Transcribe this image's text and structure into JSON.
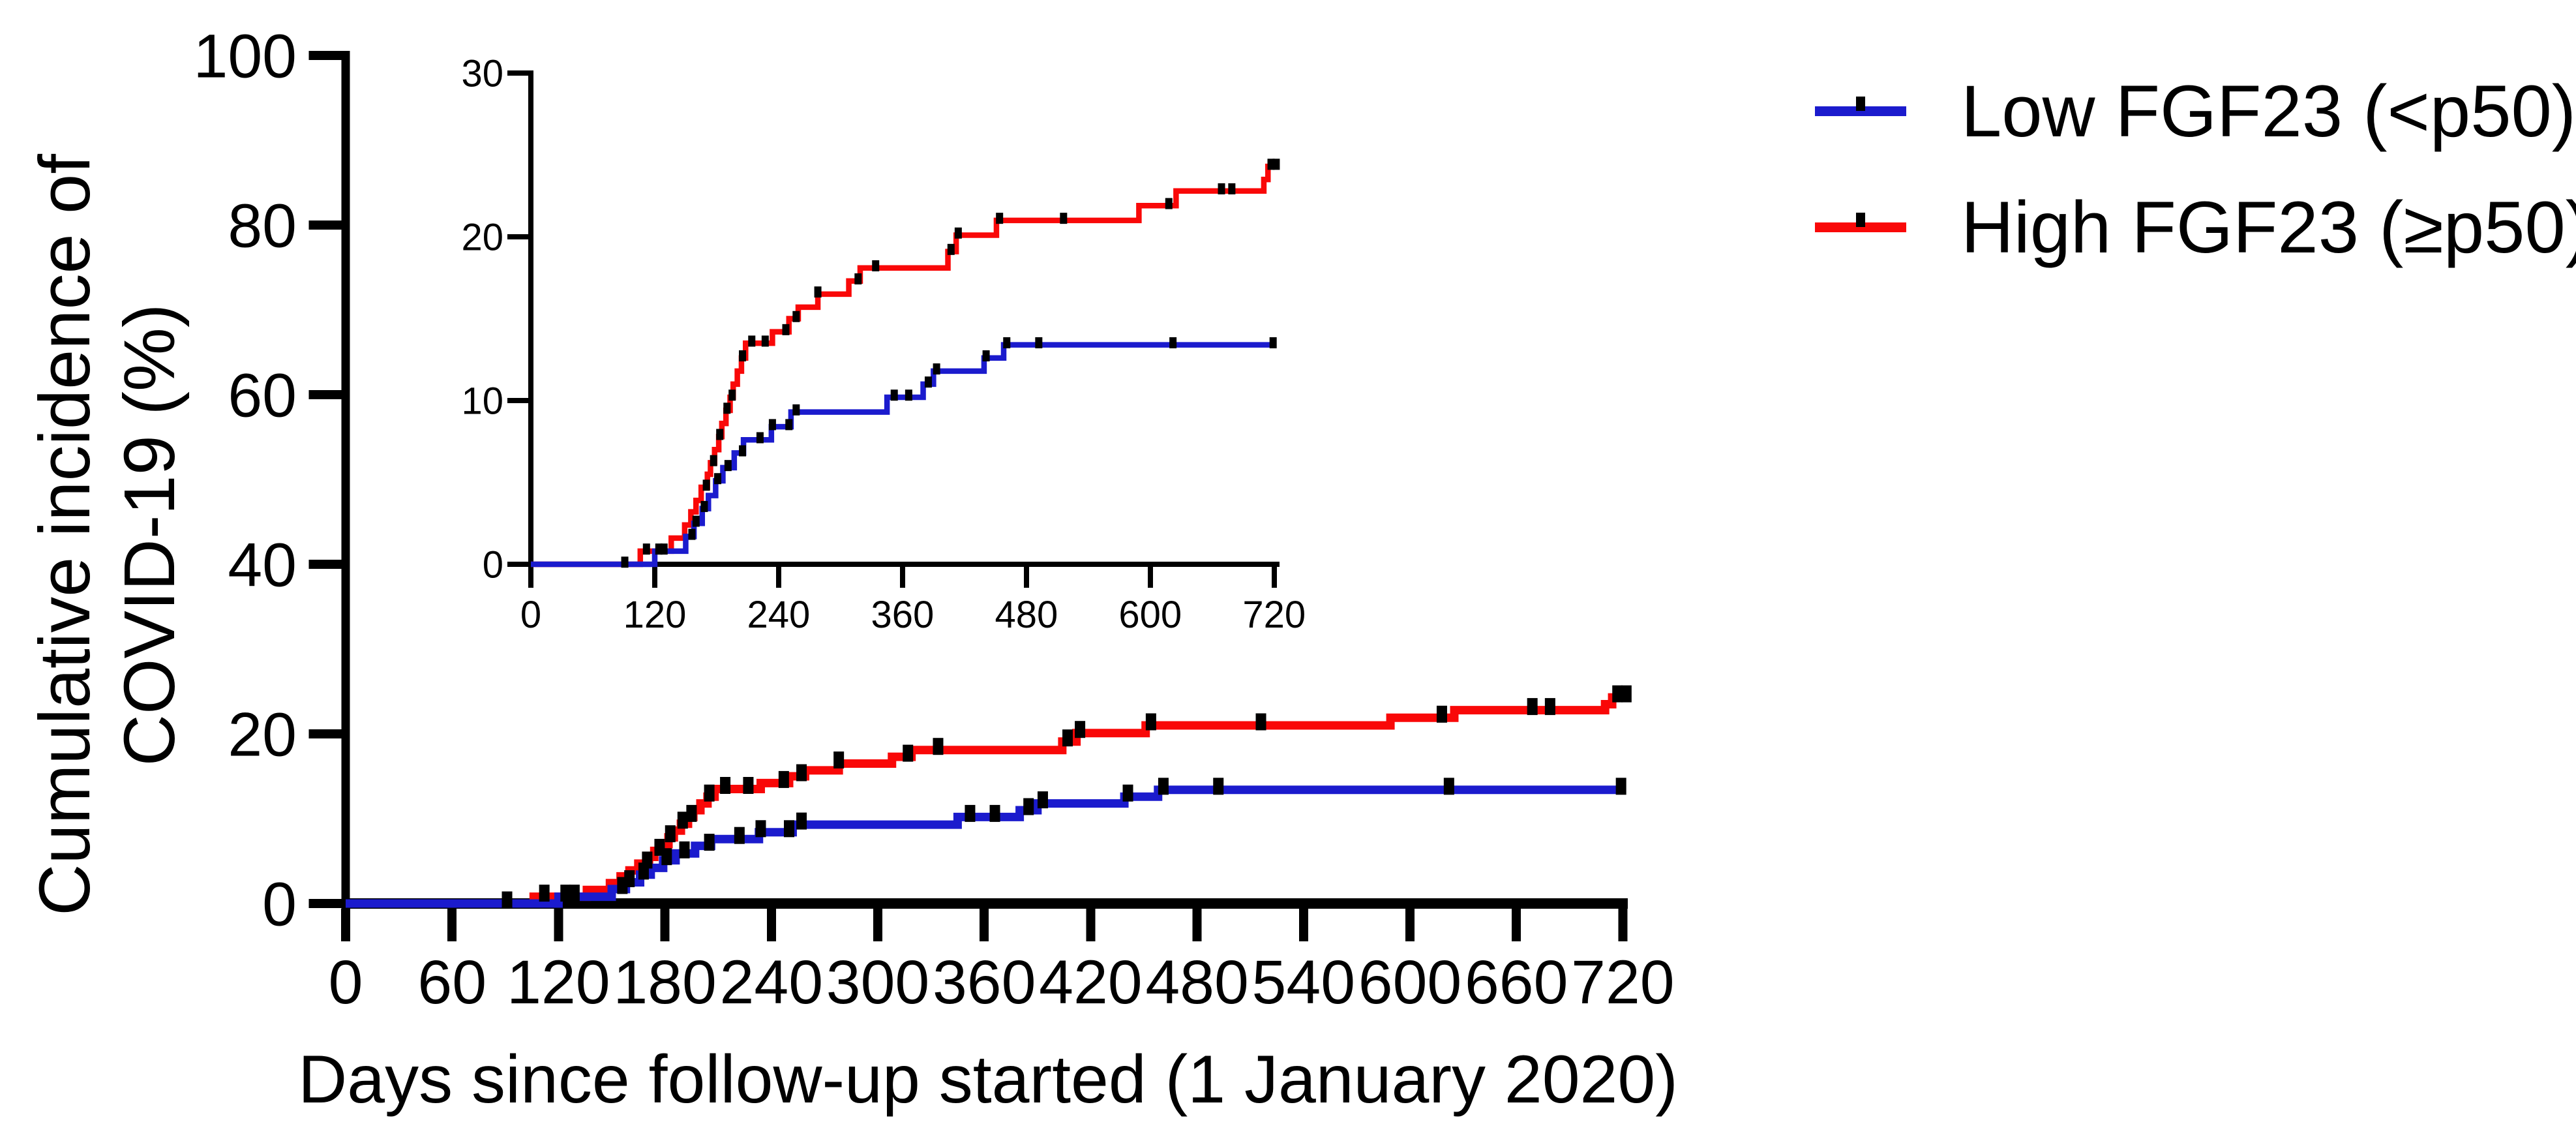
{
  "figure": {
    "y_axis_title_line1": "Cumulative incidence of",
    "y_axis_title_line2": "COVID-19 (%)",
    "x_axis_title": "Days since follow-up started (1 January 2020)"
  },
  "legend": {
    "items": [
      {
        "label": "Low FGF23 (<p50)",
        "color": "#1b1bcd"
      },
      {
        "label": "High FGF23 (≥p50)",
        "color": "#f90808"
      }
    ]
  },
  "colors": {
    "low_fgf23_blue": "#1b1bcd",
    "high_fgf23_red": "#f90808",
    "axis_black": "#000000"
  },
  "chart_data": {
    "type": "line",
    "subtype": "cumulative-incidence-step-curves-with-censor-ticks",
    "title": "",
    "xlabel": "Days since follow-up started (1 January 2020)",
    "ylabel": "Cumulative incidence of COVID-19 (%)",
    "grid": false,
    "legend_position": "top-right",
    "main_axes": {
      "xlim": [
        0,
        720
      ],
      "ylim": [
        0,
        100
      ],
      "x_ticks": [
        0,
        60,
        120,
        180,
        240,
        300,
        360,
        420,
        480,
        540,
        600,
        660,
        720
      ],
      "y_ticks": [
        0,
        20,
        40,
        60,
        80,
        100
      ]
    },
    "inset_axes": {
      "xlim": [
        0,
        720
      ],
      "ylim": [
        0,
        30
      ],
      "x_ticks": [
        0,
        120,
        240,
        360,
        480,
        600,
        720
      ],
      "y_ticks": [
        0,
        10,
        20,
        30
      ]
    },
    "series": [
      {
        "name": "Low FGF23 (<p50)",
        "color": "#1b1bcd",
        "start": [
          0,
          0
        ],
        "end_day": 721,
        "steps": [
          [
            120,
            0.8
          ],
          [
            150,
            1.7
          ],
          [
            158,
            2.5
          ],
          [
            166,
            3.4
          ],
          [
            172,
            4.2
          ],
          [
            179,
            5.1
          ],
          [
            186,
            5.9
          ],
          [
            197,
            6.8
          ],
          [
            206,
            7.6
          ],
          [
            233,
            8.4
          ],
          [
            252,
            9.3
          ],
          [
            345,
            10.2
          ],
          [
            380,
            11.0
          ],
          [
            390,
            11.8
          ],
          [
            439,
            12.6
          ],
          [
            458,
            13.4
          ]
        ],
        "censor_days": [
          124,
          156,
          160,
          168,
          181,
          191,
          205,
          222,
          234,
          250,
          257,
          352,
          366,
          385,
          393,
          441,
          461,
          492,
          622,
          719
        ]
      },
      {
        "name": "High FGF23 (≥p50)",
        "color": "#f90808",
        "start": [
          0,
          0
        ],
        "end_day": 722,
        "steps": [
          [
            106,
            0.8
          ],
          [
            136,
            1.6
          ],
          [
            149,
            2.4
          ],
          [
            155,
            3.2
          ],
          [
            160,
            3.9
          ],
          [
            165,
            4.7
          ],
          [
            171,
            5.5
          ],
          [
            174,
            6.2
          ],
          [
            178,
            7.0
          ],
          [
            182,
            7.8
          ],
          [
            185,
            8.6
          ],
          [
            189,
            9.4
          ],
          [
            193,
            10.2
          ],
          [
            196,
            11.0
          ],
          [
            200,
            11.8
          ],
          [
            204,
            12.6
          ],
          [
            208,
            13.5
          ],
          [
            234,
            14.2
          ],
          [
            250,
            15.0
          ],
          [
            259,
            15.7
          ],
          [
            278,
            16.5
          ],
          [
            308,
            17.3
          ],
          [
            319,
            18.1
          ],
          [
            404,
            19.1
          ],
          [
            412,
            20.1
          ],
          [
            451,
            21.0
          ],
          [
            589,
            21.9
          ],
          [
            625,
            22.8
          ],
          [
            710,
            23.5
          ],
          [
            714,
            24.3
          ]
        ],
        "censor_days": [
          91,
          112,
          129,
          170,
          177,
          183,
          190,
          195,
          205,
          214,
          227,
          247,
          257,
          278,
          317,
          334,
          407,
          414,
          454,
          516,
          618,
          669,
          679,
          717,
          722
        ]
      }
    ]
  }
}
